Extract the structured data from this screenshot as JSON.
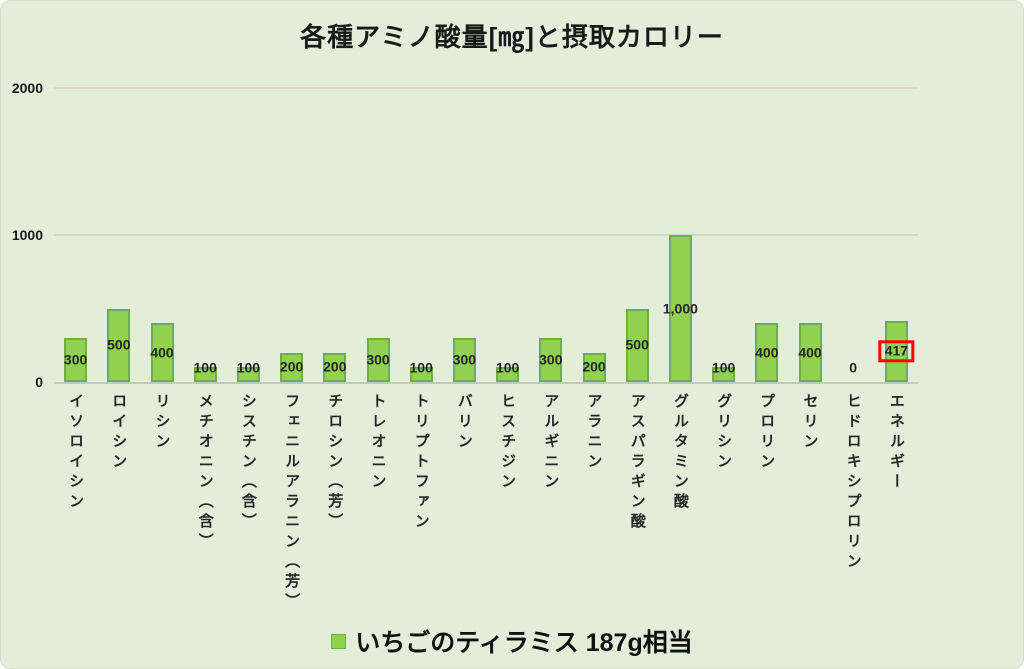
{
  "title": "各種アミノ酸量[㎎]と摂取カロリー",
  "legend": {
    "label": "いちごのティラミス 187g相当",
    "swatch_color": "#92D050"
  },
  "colors": {
    "background": "#E2EDDA",
    "bar_fill": "#92D050",
    "bar_border": "#70AD47",
    "gridline": "#D2D7CA",
    "axis_line": "#C3C9BA",
    "text": "#1A1A1A",
    "highlight_box": "#FF0000"
  },
  "chart_data": {
    "type": "bar",
    "title": "各種アミノ酸量[㎎]と摂取カロリー",
    "series_name": "いちごのティラミス 187g相当",
    "categories": [
      "イソロイシン",
      "ロイシン",
      "リシン",
      "メチオニン（含）",
      "シスチン（含）",
      "フェニルアラニン（芳）",
      "チロシン（芳）",
      "トレオニン",
      "トリプトファン",
      "バリン",
      "ヒスチジン",
      "アルギニン",
      "アラニン",
      "アスパラギン酸",
      "グルタミン酸",
      "グリシン",
      "プロリン",
      "セリン",
      "ヒドロキシプロリン",
      "エネルギー"
    ],
    "values": [
      300,
      500,
      400,
      100,
      100,
      200,
      200,
      300,
      100,
      300,
      100,
      300,
      200,
      500,
      1000,
      100,
      400,
      400,
      0,
      417
    ],
    "value_labels": [
      "300",
      "500",
      "400",
      "100",
      "100",
      "200",
      "200",
      "300",
      "100",
      "300",
      "100",
      "300",
      "200",
      "500",
      "1,000",
      "100",
      "400",
      "400",
      "0",
      "417"
    ],
    "ylim": [
      0,
      2000
    ],
    "yticks": [
      0,
      1000,
      2000
    ],
    "ytick_labels": [
      "0",
      "1000",
      "2000"
    ],
    "grid": "horizontal",
    "legend_position": "bottom",
    "highlight": {
      "index": 19,
      "style": "red-box-around-value-label",
      "color": "#FF0000"
    }
  }
}
